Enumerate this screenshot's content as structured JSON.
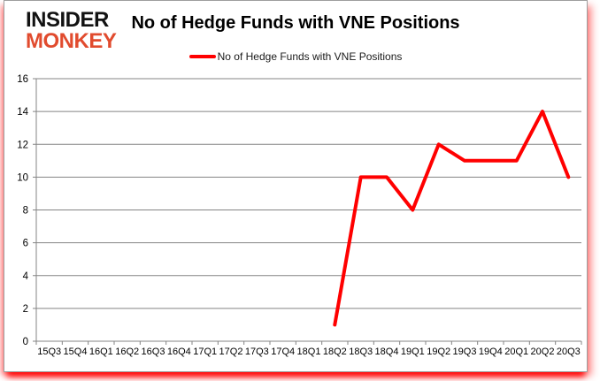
{
  "logo": {
    "line1": "INSIDER",
    "line2": "MONKEY",
    "color_primary": "#121212",
    "color_accent": "#e14b2e"
  },
  "header": {
    "title": "No of Hedge Funds with VNE Positions"
  },
  "legend": {
    "label": "No of Hedge Funds with VNE Positions",
    "marker_color": "#ff0000"
  },
  "chart_data": {
    "type": "line",
    "title": "No of Hedge Funds with VNE Positions",
    "categories": [
      "15Q3",
      "15Q4",
      "16Q1",
      "16Q2",
      "16Q3",
      "16Q4",
      "17Q1",
      "17Q2",
      "17Q3",
      "17Q4",
      "18Q1",
      "18Q2",
      "18Q3",
      "18Q4",
      "19Q1",
      "19Q2",
      "19Q3",
      "19Q4",
      "20Q1",
      "20Q2",
      "20Q3"
    ],
    "series": [
      {
        "name": "No of Hedge Funds with VNE Positions",
        "color": "#ff0000",
        "values": [
          null,
          null,
          null,
          null,
          null,
          null,
          null,
          null,
          null,
          null,
          null,
          1,
          10,
          10,
          8,
          12,
          11,
          11,
          11,
          14,
          10
        ]
      }
    ],
    "ylim": [
      0,
      16
    ],
    "yticks": [
      0,
      2,
      4,
      6,
      8,
      10,
      12,
      14,
      16
    ],
    "xlabel": "",
    "ylabel": "",
    "grid": true,
    "legend_position": "top-center",
    "gridline_color": "#848484",
    "axis_color": "#848484",
    "tick_label_color": "#000000"
  }
}
